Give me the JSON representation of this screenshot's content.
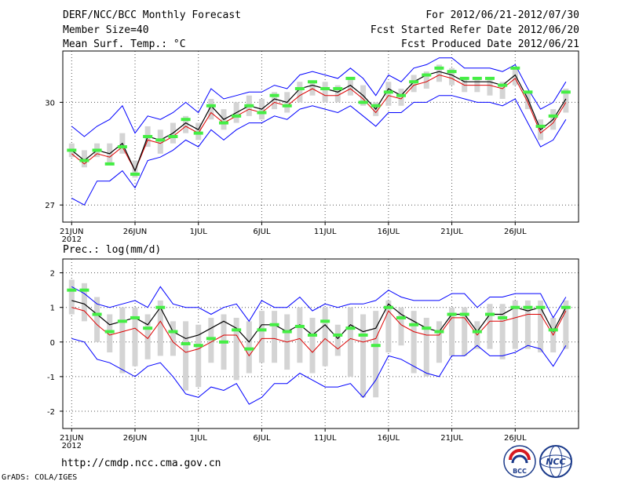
{
  "header": {
    "title": "DERF/NCC/BCC Monthly Forecast",
    "member_size": "Member Size=40",
    "variable": "Mean Surf. Temp.: °C",
    "forecast_for": "For 2012/06/21-2012/07/30",
    "started": "Fcst Started Refer Date 2012/06/20",
    "produced": "Fcst Produced Date 2012/06/21"
  },
  "footer": {
    "url": "http://cmdp.ncc.cma.gov.cn",
    "credit": "GrADS: COLA/IGES",
    "logo_bcc": "BCC",
    "logo_ncc": "NCC"
  },
  "colors": {
    "upper": "#0000ff",
    "lower": "#0000ff",
    "mean_red": "#dd0000",
    "median_black": "#000000",
    "hist_green": "#44ee44",
    "box_gray": "#d4d4d4",
    "grid": "#555555"
  },
  "chart_data": [
    {
      "type": "line",
      "title": "Mean Surf. Temp.: °C",
      "x_tick_labels": [
        "21JUN",
        "26JUN",
        "1JUL",
        "6JUL",
        "11JUL",
        "16JUL",
        "21JUL",
        "26JUL"
      ],
      "x_tick_days": [
        1,
        6,
        11,
        16,
        21,
        26,
        31,
        36
      ],
      "year_label": "2012",
      "xlim": [
        0.3,
        41
      ],
      "ylim": [
        26.5,
        31.5
      ],
      "yticks": [
        27,
        30
      ],
      "days": [
        1,
        2,
        3,
        4,
        5,
        6,
        7,
        8,
        9,
        10,
        11,
        12,
        13,
        14,
        15,
        16,
        17,
        18,
        19,
        20,
        21,
        22,
        23,
        24,
        25,
        26,
        27,
        28,
        29,
        30,
        31,
        32,
        33,
        34,
        35,
        36,
        37,
        38,
        39,
        40
      ],
      "series": [
        {
          "name": "upper",
          "values": [
            29.3,
            29.0,
            29.3,
            29.5,
            29.9,
            29.1,
            29.6,
            29.5,
            29.7,
            30.0,
            29.7,
            30.4,
            30.1,
            30.2,
            30.3,
            30.3,
            30.5,
            30.4,
            30.8,
            30.9,
            30.8,
            30.7,
            31.0,
            30.7,
            30.2,
            30.8,
            30.6,
            31.0,
            31.1,
            31.3,
            31.3,
            31.0,
            31.0,
            31.0,
            30.9,
            31.1,
            30.4,
            29.8,
            30.0,
            30.6
          ]
        },
        {
          "name": "lower",
          "values": [
            27.2,
            27.0,
            27.7,
            27.7,
            28.0,
            27.5,
            28.3,
            28.4,
            28.6,
            28.9,
            28.7,
            29.2,
            28.9,
            29.2,
            29.4,
            29.4,
            29.6,
            29.5,
            29.8,
            29.9,
            29.8,
            29.7,
            29.9,
            29.6,
            29.3,
            29.7,
            29.7,
            30.0,
            30.0,
            30.2,
            30.2,
            30.1,
            30.0,
            30.0,
            29.9,
            30.1,
            29.4,
            28.7,
            28.9,
            29.5
          ]
        },
        {
          "name": "mean",
          "values": [
            28.5,
            28.2,
            28.5,
            28.4,
            28.7,
            28.0,
            28.9,
            28.8,
            29.0,
            29.3,
            29.1,
            29.7,
            29.4,
            29.6,
            29.8,
            29.7,
            30.0,
            29.9,
            30.2,
            30.4,
            30.2,
            30.2,
            30.4,
            30.1,
            29.7,
            30.2,
            30.1,
            30.5,
            30.6,
            30.8,
            30.7,
            30.5,
            30.5,
            30.5,
            30.4,
            30.7,
            30.0,
            29.1,
            29.4,
            30.0
          ]
        },
        {
          "name": "median",
          "values": [
            28.6,
            28.3,
            28.6,
            28.5,
            28.8,
            28.0,
            29.0,
            28.9,
            29.1,
            29.4,
            29.2,
            29.9,
            29.5,
            29.7,
            29.9,
            29.8,
            30.1,
            30.0,
            30.4,
            30.5,
            30.4,
            30.3,
            30.5,
            30.2,
            29.8,
            30.4,
            30.2,
            30.6,
            30.8,
            30.9,
            30.8,
            30.6,
            30.6,
            30.6,
            30.5,
            30.8,
            30.1,
            29.2,
            29.5,
            30.1
          ]
        },
        {
          "name": "box_high",
          "values": [
            28.8,
            28.6,
            28.8,
            28.8,
            29.1,
            28.3,
            29.3,
            29.2,
            29.4,
            29.6,
            29.4,
            30.1,
            29.8,
            30.0,
            30.2,
            30.1,
            30.3,
            30.3,
            30.6,
            30.6,
            30.6,
            30.5,
            30.7,
            30.5,
            30.0,
            30.6,
            30.4,
            30.8,
            30.9,
            31.1,
            31.0,
            30.7,
            30.7,
            30.7,
            30.6,
            31.0,
            30.3,
            29.5,
            29.8,
            30.4
          ]
        },
        {
          "name": "box_low",
          "values": [
            28.4,
            28.1,
            28.4,
            28.2,
            28.5,
            27.8,
            28.7,
            28.5,
            28.8,
            29.1,
            28.9,
            29.5,
            29.2,
            29.4,
            29.6,
            29.5,
            29.8,
            29.7,
            30.0,
            30.2,
            30.0,
            30.0,
            30.2,
            29.9,
            29.6,
            29.9,
            29.9,
            30.3,
            30.4,
            30.6,
            30.5,
            30.3,
            30.3,
            30.2,
            30.1,
            30.5,
            29.8,
            28.9,
            29.2,
            29.7
          ]
        },
        {
          "name": "history",
          "values": [
            28.6,
            28.3,
            28.6,
            28.2,
            28.7,
            27.9,
            29.0,
            28.9,
            29.0,
            29.5,
            29.1,
            29.9,
            29.4,
            29.6,
            29.9,
            29.7,
            30.2,
            29.9,
            30.4,
            30.6,
            30.4,
            30.4,
            30.7,
            30.0,
            29.9,
            30.3,
            30.2,
            30.6,
            30.8,
            31.0,
            30.9,
            30.7,
            30.7,
            30.7,
            30.5,
            31.0,
            30.3,
            29.3,
            29.6,
            30.3
          ]
        }
      ]
    },
    {
      "type": "line",
      "title": "Prec.: log(mm/d)",
      "x_tick_labels": [
        "21JUN",
        "26JUN",
        "1JUL",
        "6JUL",
        "11JUL",
        "16JUL",
        "21JUL",
        "26JUL"
      ],
      "x_tick_days": [
        1,
        6,
        11,
        16,
        21,
        26,
        31,
        36
      ],
      "year_label": "2012",
      "xlim": [
        0.3,
        41
      ],
      "ylim": [
        -2.5,
        2.4
      ],
      "yticks": [
        -2,
        -1,
        0,
        1,
        2
      ],
      "days": [
        1,
        2,
        3,
        4,
        5,
        6,
        7,
        8,
        9,
        10,
        11,
        12,
        13,
        14,
        15,
        16,
        17,
        18,
        19,
        20,
        21,
        22,
        23,
        24,
        25,
        26,
        27,
        28,
        29,
        30,
        31,
        32,
        33,
        34,
        35,
        36,
        37,
        38,
        39,
        40
      ],
      "series": [
        {
          "name": "upper",
          "values": [
            1.6,
            1.4,
            1.1,
            1.0,
            1.1,
            1.2,
            1.0,
            1.6,
            1.1,
            1.0,
            1.0,
            0.8,
            1.0,
            1.1,
            0.6,
            1.2,
            1.0,
            1.0,
            1.3,
            0.9,
            1.1,
            1.0,
            1.1,
            1.1,
            1.2,
            1.5,
            1.3,
            1.2,
            1.2,
            1.2,
            1.4,
            1.4,
            1.0,
            1.3,
            1.3,
            1.4,
            1.4,
            1.4,
            0.7,
            1.3
          ]
        },
        {
          "name": "lower",
          "values": [
            0.1,
            0.0,
            -0.5,
            -0.6,
            -0.8,
            -1.0,
            -0.7,
            -0.6,
            -1.0,
            -1.5,
            -1.6,
            -1.3,
            -1.4,
            -1.2,
            -1.8,
            -1.6,
            -1.2,
            -1.2,
            -0.9,
            -1.1,
            -1.3,
            -1.3,
            -1.2,
            -1.6,
            -1.1,
            -0.4,
            -0.5,
            -0.7,
            -0.9,
            -1.0,
            -0.4,
            -0.4,
            -0.1,
            -0.4,
            -0.4,
            -0.3,
            -0.1,
            -0.2,
            -0.7,
            -0.1
          ]
        },
        {
          "name": "mean",
          "values": [
            1.0,
            0.9,
            0.5,
            0.2,
            0.3,
            0.4,
            0.1,
            0.6,
            0.0,
            -0.3,
            -0.2,
            0.0,
            0.2,
            0.2,
            -0.4,
            0.1,
            0.1,
            0.0,
            0.1,
            -0.3,
            0.1,
            -0.2,
            0.1,
            0.0,
            0.1,
            0.9,
            0.5,
            0.3,
            0.2,
            0.2,
            0.7,
            0.7,
            0.2,
            0.6,
            0.6,
            0.7,
            0.8,
            0.8,
            0.2,
            0.9
          ]
        },
        {
          "name": "median",
          "values": [
            1.2,
            1.1,
            0.8,
            0.5,
            0.6,
            0.7,
            0.5,
            1.0,
            0.3,
            0.1,
            0.2,
            0.4,
            0.6,
            0.4,
            0.0,
            0.5,
            0.5,
            0.3,
            0.5,
            0.2,
            0.5,
            0.1,
            0.5,
            0.3,
            0.4,
            1.1,
            0.8,
            0.6,
            0.4,
            0.3,
            0.8,
            0.8,
            0.3,
            0.8,
            0.8,
            1.0,
            0.9,
            1.0,
            0.3,
            1.0
          ]
        },
        {
          "name": "box_high",
          "values": [
            1.8,
            1.7,
            1.3,
            0.8,
            1.0,
            1.0,
            0.8,
            1.2,
            0.6,
            0.6,
            0.5,
            0.7,
            0.8,
            0.7,
            0.6,
            0.9,
            0.9,
            0.8,
            1.0,
            0.7,
            1.0,
            0.5,
            1.0,
            0.8,
            0.9,
            1.2,
            1.0,
            0.9,
            0.7,
            0.6,
            1.0,
            1.0,
            0.6,
            1.1,
            1.1,
            1.2,
            1.2,
            1.2,
            0.7,
            1.2
          ]
        },
        {
          "name": "box_low",
          "values": [
            0.8,
            0.6,
            0.0,
            -0.3,
            -0.9,
            -0.7,
            -0.5,
            -0.4,
            -0.4,
            -1.4,
            -1.3,
            -0.6,
            -0.8,
            -1.1,
            -0.9,
            -0.6,
            -0.6,
            -0.8,
            -0.6,
            -0.9,
            -0.7,
            -0.4,
            -1.0,
            -1.6,
            -1.6,
            -0.3,
            -0.1,
            -0.9,
            -1.0,
            -0.6,
            -0.4,
            -0.4,
            -0.2,
            -0.2,
            -0.5,
            -0.2,
            -0.2,
            -0.3,
            -0.3,
            -0.2
          ]
        },
        {
          "name": "history",
          "values": [
            1.5,
            1.5,
            0.8,
            0.3,
            0.6,
            0.7,
            0.4,
            1.0,
            0.3,
            -0.05,
            -0.1,
            0.1,
            0.0,
            0.35,
            -0.2,
            0.35,
            0.5,
            0.3,
            0.45,
            0.2,
            0.6,
            0.2,
            0.4,
            0.2,
            -0.1,
            1.0,
            0.7,
            0.5,
            0.4,
            0.3,
            0.8,
            0.8,
            0.3,
            0.8,
            0.7,
            1.0,
            1.0,
            1.0,
            0.35,
            1.0
          ]
        }
      ]
    }
  ]
}
